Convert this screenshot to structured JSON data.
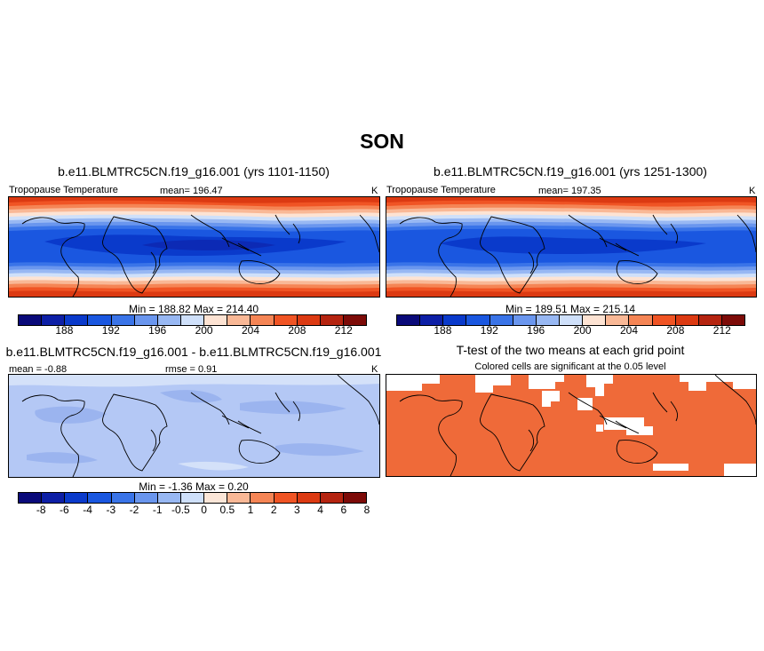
{
  "figure": {
    "season": "SON"
  },
  "panels": {
    "top_left": {
      "title": "b.e11.BLMTRC5CN.f19_g16.001 (yrs 1101-1150)",
      "left_label": "Tropopause Temperature",
      "center_label": "mean= 196.47",
      "right_label": "K",
      "minmax": "Min = 188.82 Max = 214.40"
    },
    "top_right": {
      "title": "b.e11.BLMTRC5CN.f19_g16.001 (yrs 1251-1300)",
      "left_label": "Tropopause Temperature",
      "center_label": "mean= 197.35",
      "right_label": "K",
      "minmax": "Min = 189.51 Max = 215.14"
    },
    "bottom_left": {
      "title": "b.e11.BLMTRC5CN.f19_g16.001 - b.e11.BLMTRC5CN.f19_g16.001",
      "left_label": "mean =  -0.88",
      "center_label": "rmse =   0.91",
      "right_label": "K",
      "minmax": "Min =  -1.36 Max =   0.20"
    },
    "bottom_right": {
      "title": "T-test of the two means at each grid point",
      "subtitle": "Colored cells are significant at the 0.05 level"
    }
  },
  "colorbars": {
    "absolute": {
      "colors": [
        "#0a0a7a",
        "#0d1fa6",
        "#0a3acb",
        "#1a57e0",
        "#3a74e8",
        "#6a96ee",
        "#98b8f3",
        "#cfe0fa",
        "#fde3d3",
        "#f9b896",
        "#f58555",
        "#f05424",
        "#dc3a12",
        "#b52410",
        "#7d0b08"
      ],
      "tick_labels": [
        "188",
        "192",
        "196",
        "200",
        "204",
        "208",
        "212"
      ]
    },
    "difference": {
      "colors": [
        "#0a0a7a",
        "#0d1fa6",
        "#0a3acb",
        "#1a57e0",
        "#3a74e8",
        "#6a96ee",
        "#98b8f3",
        "#cfe0fa",
        "#fbe6d8",
        "#f9b896",
        "#f58555",
        "#f05424",
        "#dc3a12",
        "#b52410",
        "#7d0b08"
      ],
      "tick_labels": [
        "-8",
        "-6",
        "-4",
        "-3",
        "-2",
        "-1",
        "-0.5",
        "0",
        "0.5",
        "1",
        "2",
        "3",
        "4",
        "6",
        "8"
      ]
    }
  },
  "colors": {
    "significant": "#ef6a39",
    "diff_base": "#b4c8f5",
    "diff_dark": "#9bb4ef",
    "diff_light": "#d4e1f9"
  }
}
